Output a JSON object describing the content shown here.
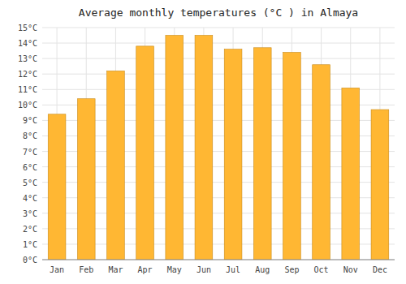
{
  "chart_data": {
    "type": "bar",
    "title": "Average monthly temperatures (°C ) in Almaya",
    "categories": [
      "Jan",
      "Feb",
      "Mar",
      "Apr",
      "May",
      "Jun",
      "Jul",
      "Aug",
      "Sep",
      "Oct",
      "Nov",
      "Dec"
    ],
    "values": [
      9.4,
      10.4,
      12.2,
      13.8,
      14.5,
      14.5,
      13.6,
      13.7,
      13.4,
      12.6,
      11.1,
      9.7
    ],
    "color": "#FFB733",
    "ylim": [
      0,
      15
    ],
    "yticks": [
      {
        "value": 0,
        "label": "0°C"
      },
      {
        "value": 1,
        "label": "1°C"
      },
      {
        "value": 2,
        "label": "2°C"
      },
      {
        "value": 3,
        "label": "3°C"
      },
      {
        "value": 4,
        "label": "4°C"
      },
      {
        "value": 5,
        "label": "5°C"
      },
      {
        "value": 6,
        "label": "6°C"
      },
      {
        "value": 7,
        "label": "7°C"
      },
      {
        "value": 8,
        "label": "8°C"
      },
      {
        "value": 9,
        "label": "9°C"
      },
      {
        "value": 10,
        "label": "10°C"
      },
      {
        "value": 11,
        "label": "11°C"
      },
      {
        "value": 12,
        "label": "12°C"
      },
      {
        "value": 13,
        "label": "13°C"
      },
      {
        "value": 14,
        "label": "14°C"
      },
      {
        "value": 15,
        "label": "15°C"
      }
    ],
    "grid": true
  }
}
